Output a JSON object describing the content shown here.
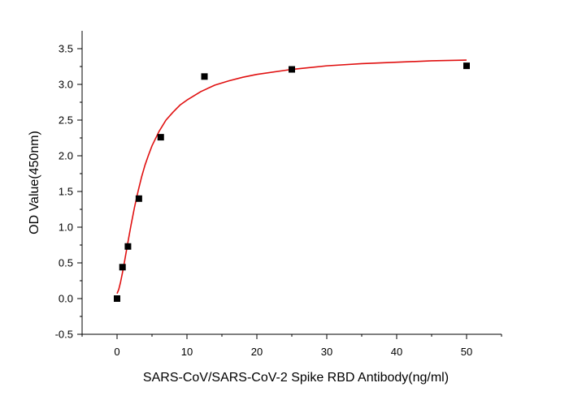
{
  "chart_data": {
    "type": "scatter",
    "xlabel": "SARS-CoV/SARS-CoV-2 Spike RBD Antibody(ng/ml)",
    "ylabel": "OD Value(450nm)",
    "xlim": [
      -5,
      55
    ],
    "ylim": [
      -0.5,
      3.75
    ],
    "x_ticks": [
      0,
      10,
      20,
      30,
      40,
      50
    ],
    "x_tick_labels": [
      "0",
      "10",
      "20",
      "30",
      "40",
      "50"
    ],
    "y_ticks": [
      -0.5,
      0.0,
      0.5,
      1.0,
      1.5,
      2.0,
      2.5,
      3.0,
      3.5
    ],
    "y_tick_labels": [
      "-0.5",
      "0.0",
      "0.5",
      "1.0",
      "1.5",
      "2.0",
      "2.5",
      "3.0",
      "3.5"
    ],
    "grid": false,
    "legend": "none",
    "series": [
      {
        "type": "scatter",
        "marker": "square",
        "color": "#000000",
        "x": [
          0,
          0.78,
          1.56,
          3.125,
          6.25,
          12.5,
          25,
          50
        ],
        "y": [
          0.0,
          0.44,
          0.73,
          1.4,
          2.26,
          3.11,
          3.21,
          3.26
        ]
      },
      {
        "type": "line",
        "color": "#e01010",
        "fit": "4PL",
        "x": [
          0,
          0.25,
          0.5,
          0.75,
          1,
          1.5,
          2,
          2.5,
          3,
          3.5,
          4,
          4.5,
          5,
          6,
          7,
          8,
          9,
          10,
          12,
          14,
          16,
          18,
          20,
          25,
          30,
          35,
          40,
          45,
          50
        ],
        "y": [
          0.07,
          0.13,
          0.23,
          0.35,
          0.48,
          0.76,
          1.03,
          1.28,
          1.5,
          1.7,
          1.87,
          2.01,
          2.14,
          2.34,
          2.5,
          2.61,
          2.71,
          2.78,
          2.9,
          2.99,
          3.05,
          3.1,
          3.14,
          3.21,
          3.26,
          3.29,
          3.31,
          3.33,
          3.34
        ]
      }
    ]
  }
}
